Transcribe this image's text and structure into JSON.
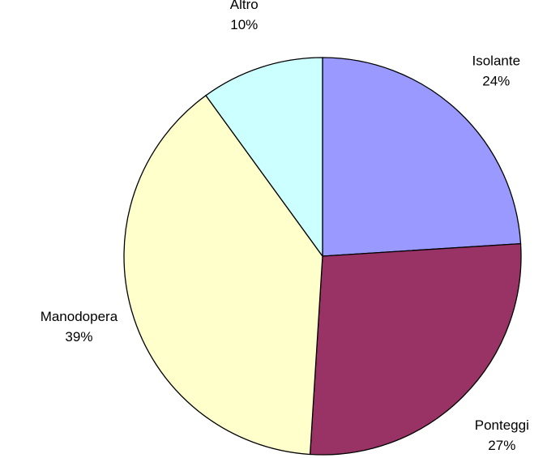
{
  "chart_data": {
    "type": "pie",
    "categories": [
      "Isolante",
      "Ponteggi",
      "Manodopera",
      "Altro"
    ],
    "values": [
      24,
      27,
      39,
      10
    ],
    "value_labels": [
      "24%",
      "27%",
      "39%",
      "10%"
    ],
    "colors": [
      "#9999ff",
      "#993366",
      "#ffffcc",
      "#ccffff"
    ]
  }
}
